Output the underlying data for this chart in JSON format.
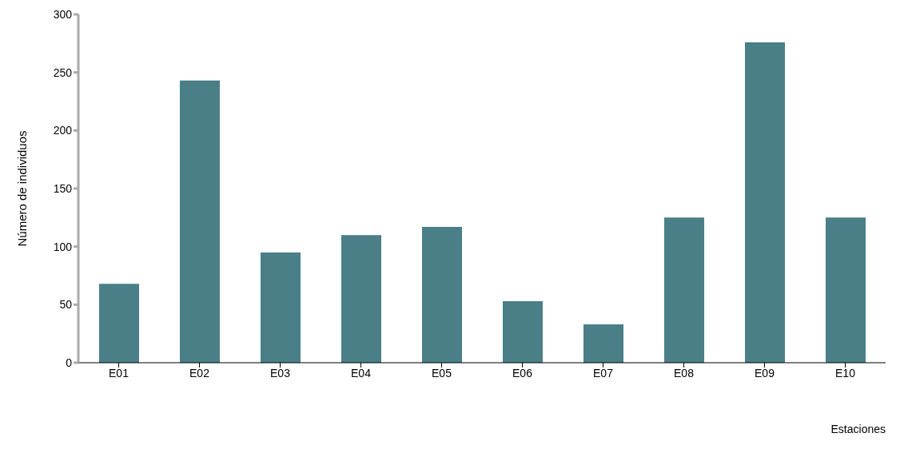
{
  "chart_data": {
    "type": "bar",
    "xlabel": "Estaciones",
    "ylabel": "Número de individuos",
    "categories": [
      "E01",
      "E02",
      "E03",
      "E04",
      "E05",
      "E06",
      "E07",
      "E08",
      "E09",
      "E10"
    ],
    "values": [
      68,
      243,
      95,
      110,
      117,
      53,
      33,
      125,
      276,
      125
    ],
    "color": "#4a7f87",
    "ylim": [
      0,
      300
    ],
    "yticks": [
      0,
      50,
      100,
      150,
      200,
      250,
      300
    ],
    "grid": false
  }
}
